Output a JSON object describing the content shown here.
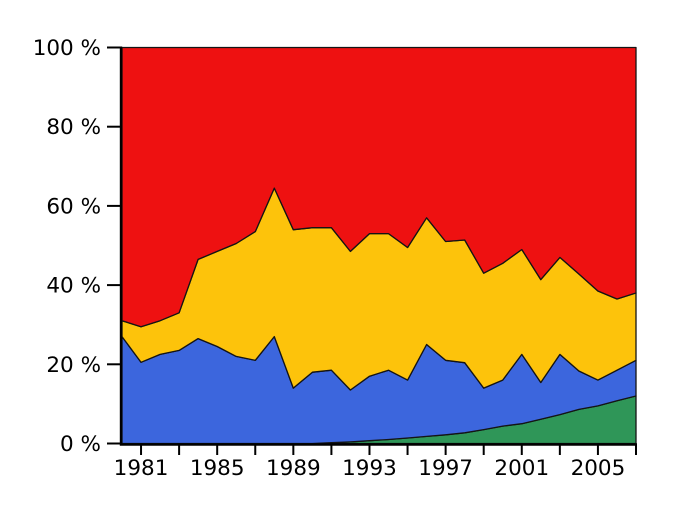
{
  "chart_data": {
    "type": "area",
    "stacked": true,
    "percent_stack": true,
    "title": "",
    "xlabel": "",
    "ylabel": "",
    "grid": false,
    "legend_position": "none",
    "xlim": [
      1980,
      2007
    ],
    "ylim": [
      0,
      100
    ],
    "x": [
      1980,
      1981,
      1982,
      1983,
      1984,
      1985,
      1986,
      1987,
      1988,
      1989,
      1990,
      1991,
      1992,
      1993,
      1994,
      1995,
      1996,
      1997,
      1998,
      1999,
      2000,
      2001,
      2002,
      2003,
      2004,
      2005,
      2006,
      2007
    ],
    "series": [
      {
        "name": "green",
        "color": "#2f9658",
        "values": [
          0,
          0,
          0,
          0,
          0,
          0,
          0,
          0,
          0,
          0,
          0,
          0.2,
          0.4,
          0.7,
          1,
          1.4,
          1.8,
          2.2,
          2.7,
          3.5,
          4.4,
          5,
          6.1,
          7.3,
          8.6,
          9.5,
          10.8,
          12
        ]
      },
      {
        "name": "blue",
        "color": "#3c66dd",
        "values": [
          27,
          20.5,
          22.5,
          23.5,
          26.5,
          24.5,
          22,
          21,
          27,
          14,
          18,
          18.3,
          13.1,
          16.3,
          17.5,
          14.6,
          23.2,
          18.8,
          17.7,
          10.5,
          11.6,
          17.5,
          9.3,
          15.2,
          9.7,
          6.5,
          7.7,
          9
        ]
      },
      {
        "name": "yellow",
        "color": "#fdc30b",
        "values": [
          4,
          9,
          8.5,
          9.5,
          20,
          24,
          28.5,
          32.5,
          37.5,
          40,
          36.5,
          36,
          35,
          36,
          34.5,
          33.5,
          32,
          30,
          31,
          29,
          29.5,
          26.5,
          26,
          24.5,
          24.5,
          22.5,
          18,
          17
        ]
      },
      {
        "name": "red",
        "color": "#ee1111",
        "values": [
          69,
          70.5,
          69,
          67,
          53.5,
          51.5,
          49.5,
          46.5,
          35.5,
          46,
          45.5,
          45.5,
          51.5,
          47,
          47,
          50.5,
          43,
          49,
          48.6,
          57,
          54.5,
          51,
          58.6,
          53,
          57.2,
          61.5,
          63.5,
          62
        ]
      }
    ],
    "x_ticks": [
      1981,
      1983,
      1985,
      1987,
      1989,
      1991,
      1993,
      1995,
      1997,
      1999,
      2001,
      2003,
      2005,
      2007
    ],
    "x_tick_labels": [
      "1981",
      "",
      "1985",
      "",
      "1989",
      "",
      "1993",
      "",
      "1997",
      "",
      "2001",
      "",
      "2005",
      ""
    ],
    "y_ticks": [
      0,
      20,
      40,
      60,
      80,
      100
    ],
    "y_tick_labels": [
      "0 %",
      "20 %",
      "40 %",
      "60 %",
      "80 %",
      "100 %"
    ],
    "style": {
      "outline_color": "#141414",
      "axis_color": "#000000",
      "label_color": "#000000",
      "background": "#ffffff"
    }
  }
}
